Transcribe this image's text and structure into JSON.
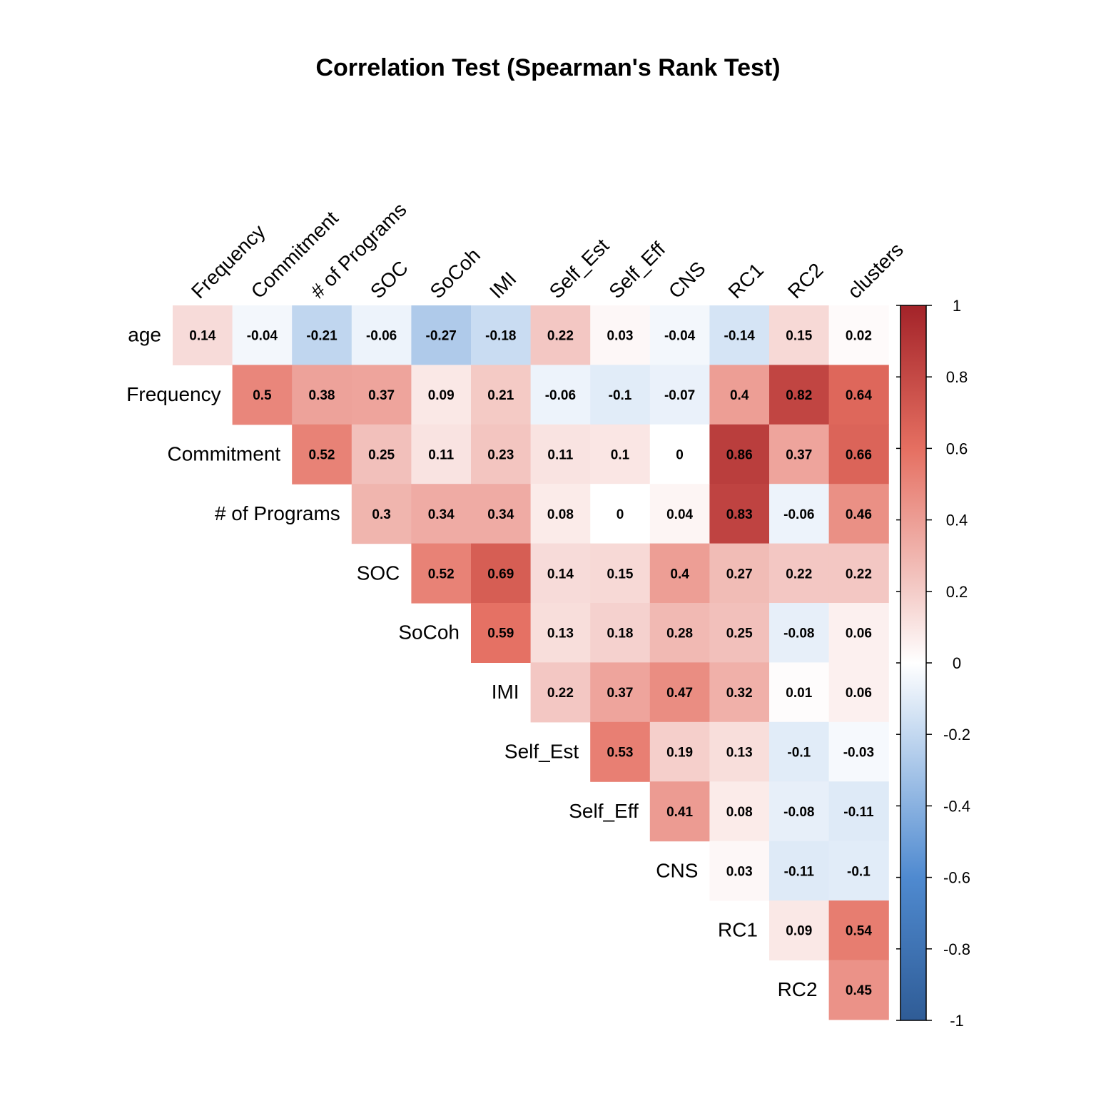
{
  "chart_data": {
    "type": "heatmap",
    "title": "Correlation Test (Spearman's Rank Test)",
    "row_labels": [
      "age",
      "Frequency",
      "Commitment",
      "# of Programs",
      "SOC",
      "SoCoh",
      "IMI",
      "Self_Est",
      "Self_Eff",
      "CNS",
      "RC1",
      "RC2"
    ],
    "col_labels": [
      "Frequency",
      "Commitment",
      "# of Programs",
      "SOC",
      "SoCoh",
      "IMI",
      "Self_Est",
      "Self_Eff",
      "CNS",
      "RC1",
      "RC2",
      "clusters"
    ],
    "values": [
      [
        0.14,
        -0.04,
        -0.21,
        -0.06,
        -0.27,
        -0.18,
        0.22,
        0.03,
        -0.04,
        -0.14,
        0.15,
        0.02
      ],
      [
        null,
        0.5,
        0.38,
        0.37,
        0.09,
        0.21,
        -0.06,
        -0.1,
        -0.07,
        0.4,
        0.82,
        0.64
      ],
      [
        null,
        null,
        0.52,
        0.25,
        0.11,
        0.23,
        0.11,
        0.1,
        0,
        0.86,
        0.37,
        0.66
      ],
      [
        null,
        null,
        null,
        0.3,
        0.34,
        0.34,
        0.08,
        0,
        0.04,
        0.83,
        -0.06,
        0.46
      ],
      [
        null,
        null,
        null,
        null,
        0.52,
        0.69,
        0.14,
        0.15,
        0.4,
        0.27,
        0.22,
        0.22
      ],
      [
        null,
        null,
        null,
        null,
        null,
        0.59,
        0.13,
        0.18,
        0.28,
        0.25,
        -0.08,
        0.06
      ],
      [
        null,
        null,
        null,
        null,
        null,
        null,
        0.22,
        0.37,
        0.47,
        0.32,
        0.01,
        0.06
      ],
      [
        null,
        null,
        null,
        null,
        null,
        null,
        null,
        0.53,
        0.19,
        0.13,
        -0.1,
        -0.03
      ],
      [
        null,
        null,
        null,
        null,
        null,
        null,
        null,
        null,
        0.41,
        0.08,
        -0.08,
        -0.11
      ],
      [
        null,
        null,
        null,
        null,
        null,
        null,
        null,
        null,
        null,
        0.03,
        -0.11,
        -0.1
      ],
      [
        null,
        null,
        null,
        null,
        null,
        null,
        null,
        null,
        null,
        null,
        0.09,
        0.54
      ],
      [
        null,
        null,
        null,
        null,
        null,
        null,
        null,
        null,
        null,
        null,
        null,
        0.45
      ]
    ],
    "colorbar": {
      "ticks": [
        "1",
        "0.8",
        "0.6",
        "0.4",
        "0.2",
        "0",
        "-0.2",
        "-0.4",
        "-0.6",
        "-0.8",
        "-1"
      ],
      "range": [
        -1,
        1
      ]
    },
    "colors": {
      "neg_strong": "#2f5c96",
      "neg_mid": "#4f8ad0",
      "neg_light": "#c3d8f0",
      "zero": "#ffffff",
      "pos_light": "#f4ccc8",
      "pos_mid": "#e56f61",
      "pos_strong": "#a32329"
    }
  }
}
